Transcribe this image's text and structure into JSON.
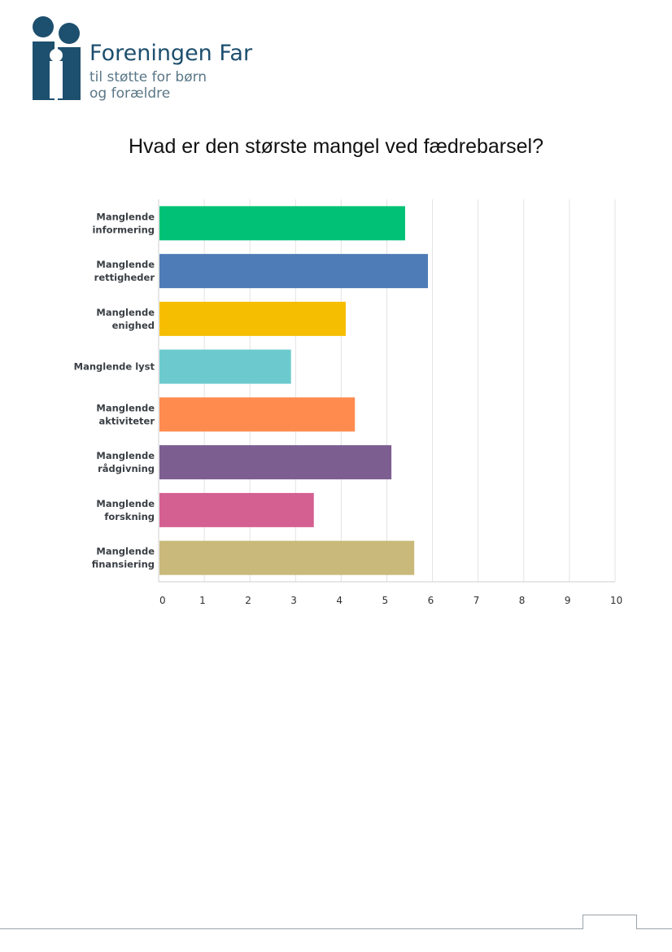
{
  "logo": {
    "name": "Foreningen Far",
    "tagline_line1": "til støtte for børn",
    "tagline_line2": "og forældre",
    "primary_color": "#1d4f6e"
  },
  "chart_data": {
    "type": "bar",
    "orientation": "horizontal",
    "title": "Hvad er den største mangel ved fædrebarsel?",
    "xlabel": "",
    "ylabel": "",
    "xlim": [
      0,
      10
    ],
    "ticks": [
      "0",
      "1",
      "2",
      "3",
      "4",
      "5",
      "6",
      "7",
      "8",
      "9",
      "10"
    ],
    "grid": true,
    "categories": [
      [
        "Manglende",
        "informering"
      ],
      [
        "Manglende",
        "rettigheder"
      ],
      [
        "Manglende",
        "enighed"
      ],
      [
        "Manglende lyst"
      ],
      [
        "Manglende",
        "aktiviteter"
      ],
      [
        "Manglende",
        "rådgivning"
      ],
      [
        "Manglende",
        "forskning"
      ],
      [
        "Manglende",
        "finansiering"
      ]
    ],
    "values": [
      5.4,
      5.9,
      4.1,
      2.9,
      4.3,
      5.1,
      3.4,
      5.6
    ],
    "colors": [
      "#00c175",
      "#4e7cb6",
      "#f6be00",
      "#6ccace",
      "#ff8b4f",
      "#7c5e91",
      "#d45f91",
      "#c9b97a"
    ]
  }
}
